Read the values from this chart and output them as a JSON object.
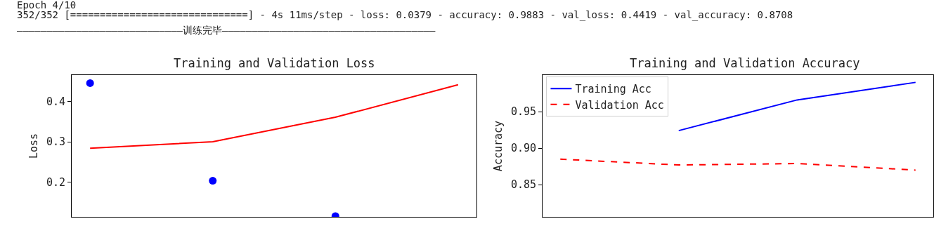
{
  "chart_data": [
    {
      "type": "line",
      "title": "Training and Validation Loss",
      "ylabel": "Loss",
      "annotations": [
        "Epoch 4/10",
        "352/352 [==============================] - 4s 11ms/step - loss: 0.0379 - accuracy: 0.9883 - val_loss: 0.4419 - val_accuracy: 0.8708",
        "————————————————————————————训练完毕————————————————————————————————————"
      ],
      "categories": [
        null,
        null,
        null,
        null
      ],
      "series": [
        {
          "type": "scatter",
          "color": "#0000ff",
          "marker": "circle",
          "values": [
            0.446,
            0.203,
            0.115,
            null
          ]
        },
        {
          "type": "line",
          "color": "#ff0000",
          "values": [
            0.284,
            0.3,
            0.361,
            0.442
          ]
        }
      ],
      "ylim": [
        0.113,
        0.466
      ],
      "yticks": [
        0.2,
        0.3,
        0.4
      ],
      "tick_labels": "y"
    },
    {
      "type": "line",
      "title": "Training and Validation Accuracy",
      "ylabel": "Accuracy",
      "categories": [
        null,
        null,
        null,
        null
      ],
      "series": [
        {
          "name": "Training Acc",
          "color": "#0000ff",
          "values": [
            null,
            0.924,
            0.966,
            0.99
          ]
        },
        {
          "name": "Validation Acc",
          "color": "#ff0000",
          "line_style": "dashed",
          "values": [
            0.885,
            0.877,
            0.879,
            0.87
          ]
        }
      ],
      "ylim": [
        0.806,
        1.0
      ],
      "yticks": [
        0.85,
        {
          "value": 0.9,
          "label": "0.90"
        },
        0.95
      ],
      "legend": "top left",
      "tick_labels": "y"
    }
  ]
}
